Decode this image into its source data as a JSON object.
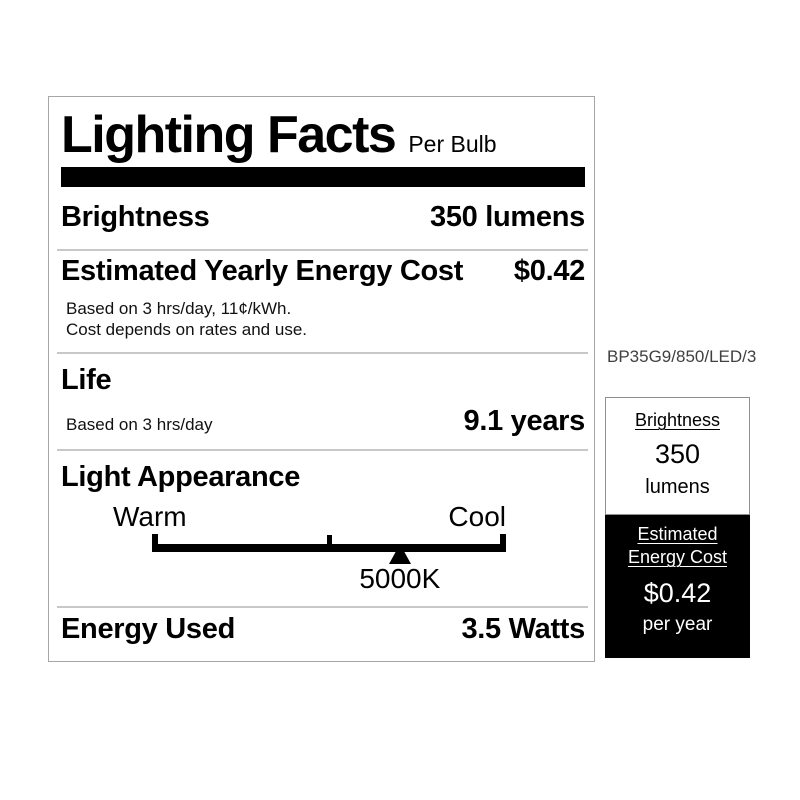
{
  "label": {
    "title": "Lighting Facts",
    "subtitle": "Per Bulb",
    "rows": {
      "brightness": {
        "name": "Brightness",
        "value": "350 lumens"
      },
      "energy_cost": {
        "name": "Estimated Yearly Energy Cost",
        "value": "$0.42",
        "note_line1": "Based on 3 hrs/day, 11¢/kWh.",
        "note_line2": "Cost depends on rates and use."
      },
      "life": {
        "name": "Life",
        "note": "Based on 3 hrs/day",
        "value": "9.1 years"
      },
      "light_appearance": {
        "name": "Light Appearance",
        "left_label": "Warm",
        "right_label": "Cool",
        "marker_value": "5000K",
        "marker_position_pct": 70
      },
      "energy_used": {
        "name": "Energy Used",
        "value": "3.5 Watts"
      }
    }
  },
  "side_panel": {
    "model_number": "BP35G9/850/LED/3",
    "brightness_box": {
      "title": "Brightness",
      "value": "350",
      "unit": "lumens"
    },
    "energy_box": {
      "title_line1": "Estimated",
      "title_line2": "Energy Cost",
      "value": "$0.42",
      "unit": "per year"
    }
  },
  "colors": {
    "ink": "#000000",
    "paper": "#ffffff",
    "divider": "#c8c8c8",
    "box_border": "#a6a6a6"
  }
}
